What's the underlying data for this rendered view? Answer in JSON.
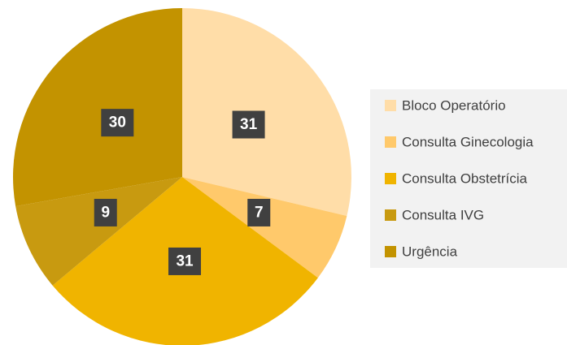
{
  "chart_data": {
    "type": "pie",
    "categories": [
      "Bloco Operatório",
      "Consulta Ginecologia",
      "Consulta Obstetrícia",
      "Consulta IVG",
      "Urgência"
    ],
    "values": [
      31,
      7,
      31,
      9,
      30
    ],
    "colors": [
      "#FFDDA8",
      "#FFC96B",
      "#F0B400",
      "#C89A10",
      "#C39300"
    ],
    "legend": "right"
  }
}
